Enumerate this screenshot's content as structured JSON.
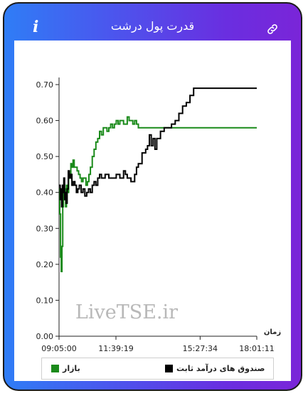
{
  "header": {
    "title": "قدرت پول درشت",
    "info_glyph": "i",
    "info_icon": "info-icon",
    "link_icon": "link-icon"
  },
  "colors": {
    "header_gradient": [
      "#2f7df6",
      "#7a25d8"
    ],
    "market": "#1a8a1a",
    "fixed_income": "#000000"
  },
  "watermark": "LiveTSE.ir",
  "chart_data": {
    "type": "line",
    "xlabel": "زمان",
    "ylabel": "",
    "ylim": [
      0,
      0.7
    ],
    "yticks": [
      "0.00",
      "0.10",
      "0.20",
      "0.30",
      "0.40",
      "0.50",
      "0.60",
      "0.70"
    ],
    "xlim": [
      "09:05:00",
      "18:01:11"
    ],
    "xticks": [
      "09:05:00",
      "11:39:19",
      "15:27:34",
      "18:01:11"
    ],
    "grid": false,
    "legend_position": "bottom",
    "series": [
      {
        "name": "بازار",
        "color": "#1a8a1a",
        "x": [
          "09:05:00",
          "09:07:00",
          "09:09:00",
          "09:11:00",
          "09:13:00",
          "09:15:00",
          "09:17:00",
          "09:19:00",
          "09:21:00",
          "09:23:00",
          "09:25:00",
          "09:28:00",
          "09:31:00",
          "09:34:00",
          "09:37:00",
          "09:40:00",
          "09:43:00",
          "09:46:00",
          "09:50:00",
          "09:54:00",
          "09:58:00",
          "10:02:00",
          "10:06:00",
          "10:10:00",
          "10:14:00",
          "10:18:00",
          "10:22:00",
          "10:26:00",
          "10:30:00",
          "10:35:00",
          "10:40:00",
          "10:45:00",
          "10:50:00",
          "10:55:00",
          "11:00:00",
          "11:05:00",
          "11:10:00",
          "11:15:00",
          "11:20:00",
          "11:25:00",
          "11:30:00",
          "11:35:00",
          "11:40:00",
          "11:45:00",
          "11:50:00",
          "11:55:00",
          "12:00:00",
          "12:05:00",
          "12:10:00",
          "12:15:00",
          "12:20:00",
          "12:25:00",
          "12:30:00",
          "12:35:00",
          "12:40:00",
          "12:50:00",
          "13:00:00",
          "13:30:00",
          "14:00:00",
          "15:00:00",
          "16:00:00",
          "17:00:00",
          "18:01:11"
        ],
        "y": [
          0.41,
          0.34,
          0.22,
          0.18,
          0.25,
          0.36,
          0.4,
          0.38,
          0.41,
          0.36,
          0.42,
          0.4,
          0.45,
          0.44,
          0.48,
          0.47,
          0.49,
          0.47,
          0.47,
          0.46,
          0.45,
          0.44,
          0.43,
          0.44,
          0.44,
          0.42,
          0.43,
          0.45,
          0.47,
          0.5,
          0.52,
          0.54,
          0.55,
          0.57,
          0.56,
          0.58,
          0.58,
          0.57,
          0.58,
          0.59,
          0.58,
          0.59,
          0.6,
          0.59,
          0.6,
          0.6,
          0.59,
          0.59,
          0.61,
          0.6,
          0.6,
          0.59,
          0.6,
          0.59,
          0.58,
          0.58,
          0.58,
          0.58,
          0.58,
          0.58,
          0.58,
          0.58,
          0.58
        ]
      },
      {
        "name": "صندوق های درآمد ثابت",
        "color": "#000000",
        "x": [
          "09:05:00",
          "09:08:00",
          "09:10:00",
          "09:12:00",
          "09:14:00",
          "09:16:00",
          "09:18:00",
          "09:20:00",
          "09:22:00",
          "09:24:00",
          "09:27:00",
          "09:30:00",
          "09:33:00",
          "09:36:00",
          "09:40:00",
          "09:44:00",
          "09:48:00",
          "09:52:00",
          "09:56:00",
          "10:00:00",
          "10:05:00",
          "10:10:00",
          "10:15:00",
          "10:20:00",
          "10:25:00",
          "10:30:00",
          "10:35:00",
          "10:40:00",
          "10:45:00",
          "10:50:00",
          "10:55:00",
          "11:00:00",
          "11:10:00",
          "11:20:00",
          "11:30:00",
          "11:40:00",
          "11:50:00",
          "12:00:00",
          "12:05:00",
          "12:10:00",
          "12:20:00",
          "12:30:00",
          "12:35:00",
          "12:40:00",
          "12:50:00",
          "13:00:00",
          "13:05:00",
          "13:10:00",
          "13:15:00",
          "13:20:00",
          "13:25:00",
          "13:30:00",
          "13:40:00",
          "13:50:00",
          "14:00:00",
          "14:10:00",
          "14:20:00",
          "14:30:00",
          "14:40:00",
          "14:50:00",
          "15:00:00",
          "15:10:00",
          "15:20:00",
          "15:30:00",
          "16:00:00",
          "17:00:00",
          "18:01:11"
        ],
        "y": [
          0.42,
          0.38,
          0.41,
          0.36,
          0.42,
          0.4,
          0.44,
          0.38,
          0.4,
          0.37,
          0.41,
          0.46,
          0.44,
          0.45,
          0.42,
          0.43,
          0.42,
          0.4,
          0.41,
          0.42,
          0.4,
          0.41,
          0.39,
          0.4,
          0.41,
          0.4,
          0.42,
          0.43,
          0.42,
          0.44,
          0.45,
          0.44,
          0.45,
          0.44,
          0.44,
          0.45,
          0.44,
          0.46,
          0.45,
          0.44,
          0.43,
          0.45,
          0.47,
          0.48,
          0.51,
          0.52,
          0.53,
          0.56,
          0.53,
          0.55,
          0.52,
          0.55,
          0.57,
          0.58,
          0.58,
          0.59,
          0.6,
          0.62,
          0.64,
          0.65,
          0.67,
          0.69,
          0.69,
          0.69,
          0.69,
          0.69,
          0.69
        ]
      }
    ]
  }
}
